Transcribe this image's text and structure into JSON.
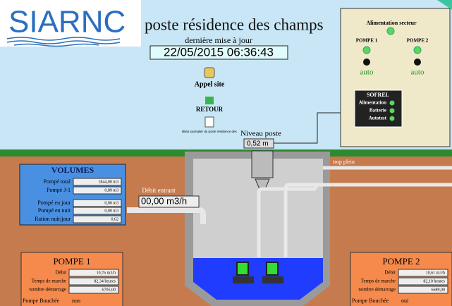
{
  "header": {
    "logo": "SIARNC",
    "title": "poste résidence des champs",
    "update_label": "dernière mise à jour",
    "update_value": "22/05/2015 06:36:43"
  },
  "actions": [
    "Appel site",
    "RETOUR",
    "Bilan journalier du poste résidence des"
  ],
  "level": {
    "label": "Niveau poste",
    "value": "0,52 m"
  },
  "overflow_label": "trop plein",
  "inflow": {
    "label": "Débit entrant",
    "value": "00,00 m3/h"
  },
  "panel": {
    "power": "Alimentation secteur",
    "pumps": [
      {
        "name": "POMPE 1",
        "mode": "auto"
      },
      {
        "name": "POMPE 2",
        "mode": "auto"
      }
    ],
    "sofrel": {
      "title": "SOFREL",
      "items": [
        "Alimentation",
        "Batterie",
        "Autotest"
      ]
    }
  },
  "volumes": {
    "title": "VOLUMES",
    "rows": [
      [
        "Pompé total",
        "1844,00 m3"
      ],
      [
        "Pompé J-1",
        "0,89 m3"
      ],
      [
        "Pompé en jour",
        "0,00 m3"
      ],
      [
        "Pompé en nuit",
        "0,00 m3"
      ],
      [
        "Ration nuit/jour",
        "0,62"
      ]
    ]
  },
  "pumps": [
    {
      "title": "POMPE 1",
      "rows": [
        [
          "Débit",
          "10,76 m3/h"
        ],
        [
          "Temps de marche",
          "82,34 heures"
        ],
        [
          "nombre démarrage",
          "6705,00"
        ]
      ],
      "clog_label": "Pompe Bouchée",
      "clog_value": "non"
    },
    {
      "title": "POMPE 2",
      "rows": [
        [
          "Débit",
          "10,61 m3/h"
        ],
        [
          "Temps de marche",
          "82,10 heures"
        ],
        [
          "nombre démarrage",
          "6689,00"
        ]
      ],
      "clog_label": "Pompe Bouchée",
      "clog_value": "oui"
    }
  ]
}
